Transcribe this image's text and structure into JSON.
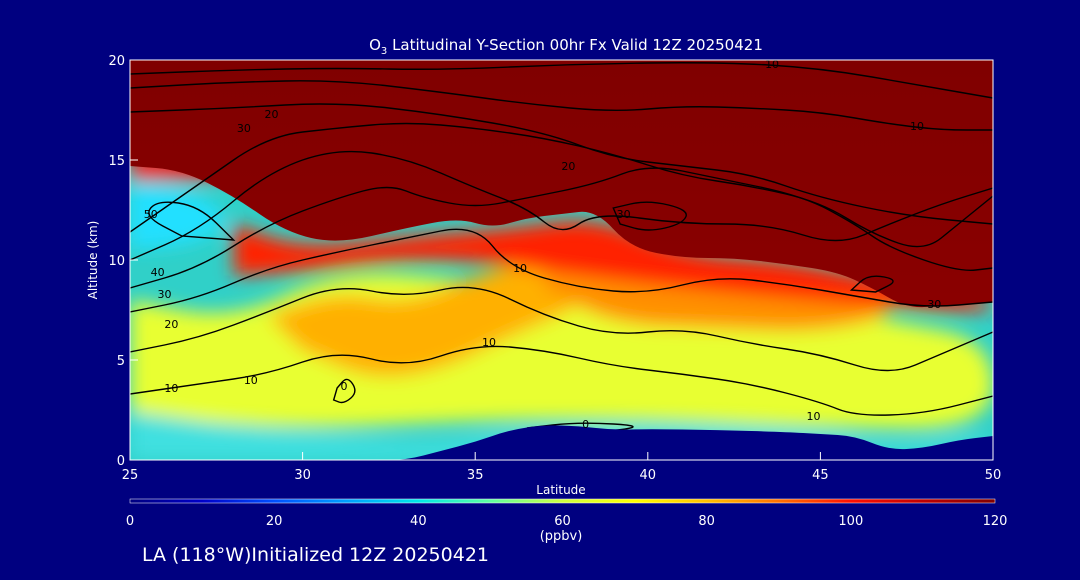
{
  "chart_data": {
    "type": "heatmap",
    "title": "O",
    "title_sub": "3",
    "title_rest": " Latitudinal Y-Section 00hr  Fx Valid 12Z 20250421",
    "xlabel": "Latitude",
    "ylabel": "Altitude (km)",
    "xlim": [
      25,
      50
    ],
    "ylim": [
      0,
      20
    ],
    "x_ticks": [
      25,
      30,
      35,
      40,
      45,
      50
    ],
    "y_ticks": [
      0,
      5,
      10,
      15,
      20
    ],
    "colorbar": {
      "range": [
        0,
        120
      ],
      "ticks": [
        0,
        20,
        40,
        60,
        80,
        100,
        120
      ],
      "unit": "(ppbv)",
      "colors": [
        "#000080",
        "#0000c8",
        "#0050ff",
        "#00a0ff",
        "#00e8e8",
        "#60ffa0",
        "#d0ff40",
        "#ffff00",
        "#ffc000",
        "#ff7000",
        "#ff1000",
        "#c00000",
        "#800000"
      ]
    },
    "surface_terrain_km": [
      [
        25,
        0
      ],
      [
        30,
        0
      ],
      [
        32,
        0
      ],
      [
        33,
        0.0
      ],
      [
        34,
        0.45
      ],
      [
        35,
        0.9
      ],
      [
        36,
        1.5
      ],
      [
        37,
        1.75
      ],
      [
        38,
        1.7
      ],
      [
        39,
        1.5
      ],
      [
        40,
        1.55
      ],
      [
        42,
        1.5
      ],
      [
        44,
        1.4
      ],
      [
        45,
        1.3
      ],
      [
        46,
        1.2
      ],
      [
        47,
        0.5
      ],
      [
        48,
        0.6
      ],
      [
        49,
        1.0
      ],
      [
        50,
        1.2
      ]
    ],
    "tropopause_boundary_km": [
      [
        25,
        14.7
      ],
      [
        26.5,
        14.5
      ],
      [
        28,
        13.2
      ],
      [
        29.5,
        11.4
      ],
      [
        31,
        10.8
      ],
      [
        33,
        11.6
      ],
      [
        34.5,
        12.1
      ],
      [
        35.5,
        11.6
      ],
      [
        36.5,
        12.1
      ],
      [
        37.5,
        12.3
      ],
      [
        38.5,
        12.5
      ],
      [
        39.5,
        10.6
      ],
      [
        41,
        10.1
      ],
      [
        42.5,
        10.1
      ],
      [
        44,
        9.8
      ],
      [
        45.5,
        9.4
      ],
      [
        46.5,
        8.6
      ],
      [
        47.5,
        7.6
      ],
      [
        48.5,
        7.7
      ],
      [
        50,
        7.9
      ]
    ],
    "contour_labels": [
      {
        "text": "10",
        "lat": 44.8,
        "alt": 2.2
      },
      {
        "text": "10",
        "lat": 35.4,
        "alt": 5.9
      },
      {
        "text": "10",
        "lat": 26.2,
        "alt": 3.6
      },
      {
        "text": "20",
        "lat": 26.2,
        "alt": 6.8
      },
      {
        "text": "30",
        "lat": 26.0,
        "alt": 8.3
      },
      {
        "text": "40",
        "lat": 25.8,
        "alt": 9.4
      },
      {
        "text": "50",
        "lat": 25.6,
        "alt": 12.3
      },
      {
        "text": "10",
        "lat": 28.5,
        "alt": 4.0
      },
      {
        "text": "10",
        "lat": 36.3,
        "alt": 9.6
      },
      {
        "text": "30",
        "lat": 39.3,
        "alt": 12.3
      },
      {
        "text": "20",
        "lat": 37.7,
        "alt": 14.7
      },
      {
        "text": "30",
        "lat": 28.3,
        "alt": 16.6
      },
      {
        "text": "20",
        "lat": 29.1,
        "alt": 17.3
      },
      {
        "text": "10",
        "lat": 43.6,
        "alt": 19.8
      },
      {
        "text": "10",
        "lat": 47.8,
        "alt": 16.7
      },
      {
        "text": "30",
        "lat": 48.3,
        "alt": 7.8
      },
      {
        "text": "0",
        "lat": 31.2,
        "alt": 3.7
      },
      {
        "text": "0",
        "lat": 38.2,
        "alt": 1.8
      }
    ]
  },
  "footer": "LA (118°W)Initialized 12Z 20250421"
}
